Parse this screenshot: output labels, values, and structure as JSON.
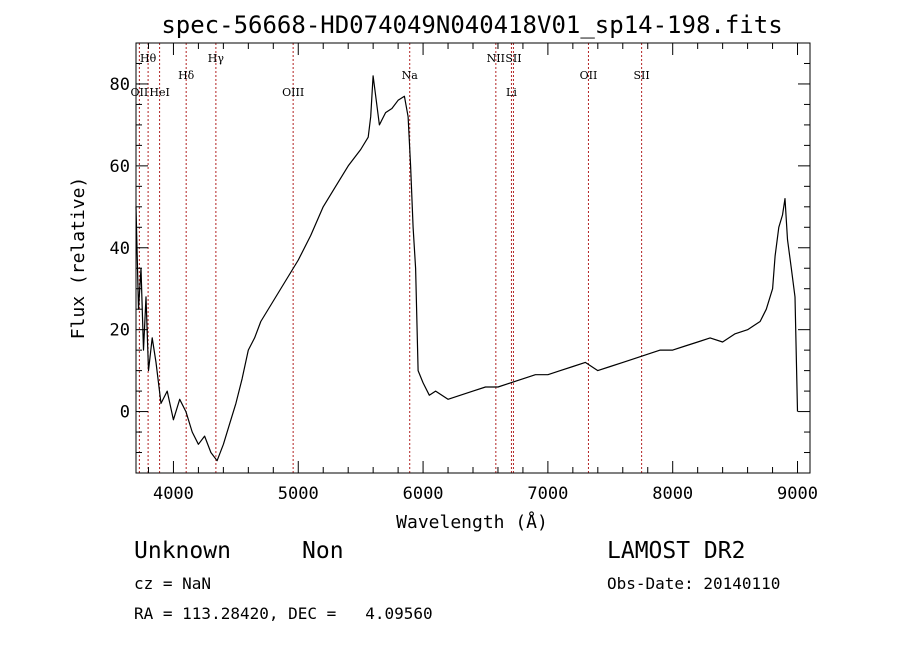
{
  "chart_data": {
    "type": "line",
    "title": "spec-56668-HD074049N040418V01_sp14-198.fits",
    "xlabel": "Wavelength (Å)",
    "ylabel": "Flux (relative)",
    "xlim": [
      3700,
      9100
    ],
    "ylim": [
      -15,
      90
    ],
    "xticks": [
      4000,
      5000,
      6000,
      7000,
      8000,
      9000
    ],
    "yticks": [
      0,
      20,
      40,
      60,
      80
    ],
    "line_color": "#000000",
    "marker_color": "#b22222",
    "series": [
      {
        "x": [
          3700,
          3720,
          3740,
          3760,
          3780,
          3800,
          3830,
          3860,
          3900,
          3950,
          4000,
          4050,
          4100,
          4150,
          4200,
          4250,
          4300,
          4350,
          4400,
          4450,
          4500,
          4550,
          4600,
          4650,
          4700,
          4800,
          4900,
          5000,
          5100,
          5200,
          5300,
          5400,
          5500,
          5560,
          5580,
          5600,
          5650,
          5700,
          5750,
          5800,
          5850,
          5880,
          5900,
          5920,
          5940,
          5960,
          6000,
          6050,
          6100,
          6200,
          6300,
          6400,
          6500,
          6600,
          6700,
          6800,
          6900,
          7000,
          7100,
          7200,
          7300,
          7400,
          7500,
          7600,
          7700,
          7800,
          7900,
          8000,
          8100,
          8200,
          8300,
          8400,
          8500,
          8600,
          8650,
          8700,
          8750,
          8800,
          8820,
          8850,
          8880,
          8900,
          8920,
          8950,
          8980,
          9000
        ],
        "values": [
          50,
          25,
          35,
          15,
          28,
          10,
          18,
          12,
          2,
          5,
          -2,
          3,
          0,
          -5,
          -8,
          -6,
          -10,
          -12,
          -8,
          -3,
          2,
          8,
          15,
          18,
          22,
          27,
          32,
          37,
          43,
          50,
          55,
          60,
          64,
          67,
          72,
          82,
          70,
          73,
          74,
          76,
          77,
          72,
          60,
          45,
          35,
          10,
          7,
          4,
          5,
          3,
          4,
          5,
          6,
          6,
          7,
          8,
          9,
          9,
          10,
          11,
          12,
          10,
          11,
          12,
          13,
          14,
          15,
          15,
          16,
          17,
          18,
          17,
          19,
          20,
          21,
          22,
          25,
          30,
          38,
          45,
          48,
          52,
          42,
          35,
          28,
          0
        ]
      }
    ],
    "lines": [
      {
        "wavelength": 3797,
        "label": "Hθ",
        "row": 0
      },
      {
        "wavelength": 3727,
        "label": "OII",
        "row": 2
      },
      {
        "wavelength": 3889,
        "label": "HeI",
        "row": 2
      },
      {
        "wavelength": 4102,
        "label": "Hδ",
        "row": 1
      },
      {
        "wavelength": 4340,
        "label": "Hγ",
        "row": 0
      },
      {
        "wavelength": 4959,
        "label": "OIII",
        "row": 2
      },
      {
        "wavelength": 5893,
        "label": "Na",
        "row": 1
      },
      {
        "wavelength": 6583,
        "label": "NII",
        "row": 0
      },
      {
        "wavelength": 6708,
        "label": "Li",
        "row": 2
      },
      {
        "wavelength": 6724,
        "label": "SII",
        "row": 0
      },
      {
        "wavelength": 7325,
        "label": "OII",
        "row": 1
      },
      {
        "wavelength": 7751,
        "label": "SII",
        "row": 1
      }
    ]
  },
  "info": {
    "class": "Unknown",
    "subclass": "Non",
    "survey": "LAMOST DR2",
    "cz": "cz = NaN",
    "obs_date": "Obs-Date: 20140110",
    "coords": "RA = 113.28420, DEC =   4.09560"
  }
}
